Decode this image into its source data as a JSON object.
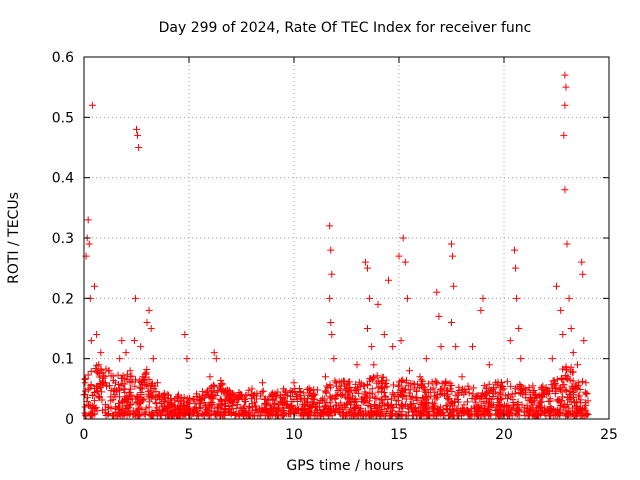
{
  "chart_data": {
    "type": "scatter",
    "title": "Day 299 of 2024, Rate Of TEC Index for receiver func",
    "xlabel": "GPS time / hours",
    "ylabel": "ROTI / TECUs",
    "xlim": [
      0,
      25
    ],
    "ylim": [
      0,
      0.6
    ],
    "x_ticks": [
      0,
      5,
      10,
      15,
      20,
      25
    ],
    "y_ticks": [
      0,
      0.1,
      0.2,
      0.3,
      0.4,
      0.5,
      0.6
    ],
    "x_tick_labels": [
      "0",
      "5",
      "10",
      "15",
      "20",
      "25"
    ],
    "y_tick_labels": [
      "0",
      "0.1",
      "0.2",
      "0.3",
      "0.4",
      "0.5",
      "0.6"
    ],
    "grid": true,
    "marker": "+",
    "color": "#ff0000",
    "series": [
      {
        "name": "ROTI",
        "points": [
          [
            0.05,
            0.06
          ],
          [
            0.1,
            0.27
          ],
          [
            0.15,
            0.3
          ],
          [
            0.2,
            0.33
          ],
          [
            0.25,
            0.29
          ],
          [
            0.3,
            0.2
          ],
          [
            0.35,
            0.13
          ],
          [
            0.4,
            0.52
          ],
          [
            0.5,
            0.22
          ],
          [
            0.6,
            0.14
          ],
          [
            0.7,
            0.09
          ],
          [
            0.8,
            0.11
          ],
          [
            1.0,
            0.07
          ],
          [
            1.2,
            0.08
          ],
          [
            1.5,
            0.06
          ],
          [
            1.7,
            0.1
          ],
          [
            1.8,
            0.13
          ],
          [
            2.0,
            0.11
          ],
          [
            2.2,
            0.08
          ],
          [
            2.4,
            0.13
          ],
          [
            2.45,
            0.2
          ],
          [
            2.5,
            0.48
          ],
          [
            2.55,
            0.47
          ],
          [
            2.6,
            0.45
          ],
          [
            2.7,
            0.12
          ],
          [
            2.8,
            0.07
          ],
          [
            3.0,
            0.16
          ],
          [
            3.1,
            0.18
          ],
          [
            3.2,
            0.15
          ],
          [
            3.3,
            0.1
          ],
          [
            3.5,
            0.06
          ],
          [
            3.6,
            0.04
          ],
          [
            4.0,
            0.03
          ],
          [
            4.5,
            0.04
          ],
          [
            4.8,
            0.14
          ],
          [
            4.9,
            0.1
          ],
          [
            5.0,
            0.03
          ],
          [
            5.5,
            0.03
          ],
          [
            6.0,
            0.07
          ],
          [
            6.2,
            0.11
          ],
          [
            6.3,
            0.1
          ],
          [
            6.5,
            0.05
          ],
          [
            7.0,
            0.03
          ],
          [
            7.5,
            0.04
          ],
          [
            8.0,
            0.05
          ],
          [
            8.5,
            0.06
          ],
          [
            9.0,
            0.04
          ],
          [
            9.5,
            0.05
          ],
          [
            10.0,
            0.06
          ],
          [
            10.5,
            0.03
          ],
          [
            11.0,
            0.04
          ],
          [
            11.5,
            0.07
          ],
          [
            11.7,
            0.32
          ],
          [
            11.75,
            0.28
          ],
          [
            11.8,
            0.24
          ],
          [
            11.7,
            0.2
          ],
          [
            11.75,
            0.16
          ],
          [
            11.8,
            0.14
          ],
          [
            11.9,
            0.1
          ],
          [
            12.0,
            0.06
          ],
          [
            12.5,
            0.05
          ],
          [
            13.0,
            0.09
          ],
          [
            13.4,
            0.26
          ],
          [
            13.5,
            0.25
          ],
          [
            13.6,
            0.2
          ],
          [
            13.5,
            0.15
          ],
          [
            13.7,
            0.12
          ],
          [
            13.8,
            0.09
          ],
          [
            14.0,
            0.19
          ],
          [
            14.3,
            0.14
          ],
          [
            14.5,
            0.23
          ],
          [
            14.7,
            0.12
          ],
          [
            15.0,
            0.27
          ],
          [
            15.2,
            0.3
          ],
          [
            15.3,
            0.26
          ],
          [
            15.4,
            0.2
          ],
          [
            15.1,
            0.13
          ],
          [
            15.5,
            0.08
          ],
          [
            16.0,
            0.07
          ],
          [
            16.3,
            0.1
          ],
          [
            16.8,
            0.21
          ],
          [
            16.9,
            0.17
          ],
          [
            17.0,
            0.12
          ],
          [
            17.5,
            0.29
          ],
          [
            17.55,
            0.27
          ],
          [
            17.6,
            0.22
          ],
          [
            17.5,
            0.16
          ],
          [
            17.7,
            0.12
          ],
          [
            18.0,
            0.07
          ],
          [
            18.5,
            0.12
          ],
          [
            18.9,
            0.18
          ],
          [
            19.0,
            0.2
          ],
          [
            19.3,
            0.09
          ],
          [
            19.6,
            0.06
          ],
          [
            20.0,
            0.05
          ],
          [
            20.3,
            0.13
          ],
          [
            20.5,
            0.28
          ],
          [
            20.55,
            0.25
          ],
          [
            20.6,
            0.2
          ],
          [
            20.7,
            0.15
          ],
          [
            20.8,
            0.1
          ],
          [
            21.0,
            0.05
          ],
          [
            21.5,
            0.04
          ],
          [
            22.0,
            0.05
          ],
          [
            22.3,
            0.1
          ],
          [
            22.5,
            0.22
          ],
          [
            22.7,
            0.18
          ],
          [
            22.8,
            0.14
          ],
          [
            22.9,
            0.57
          ],
          [
            22.95,
            0.55
          ],
          [
            22.9,
            0.52
          ],
          [
            22.85,
            0.47
          ],
          [
            22.9,
            0.38
          ],
          [
            23.0,
            0.29
          ],
          [
            23.1,
            0.2
          ],
          [
            23.2,
            0.15
          ],
          [
            23.3,
            0.11
          ],
          [
            23.5,
            0.09
          ],
          [
            23.7,
            0.26
          ],
          [
            23.75,
            0.24
          ],
          [
            23.8,
            0.13
          ],
          [
            23.9,
            0.06
          ],
          [
            24.0,
            0.03
          ]
        ],
        "dense_band": [
          [
            0,
            0.12
          ],
          [
            0.5,
            0.1
          ],
          [
            1,
            0.08
          ],
          [
            1.5,
            0.07
          ],
          [
            2,
            0.08
          ],
          [
            2.5,
            0.06
          ],
          [
            3,
            0.08
          ],
          [
            3.5,
            0.05
          ],
          [
            4,
            0.035
          ],
          [
            5,
            0.03
          ],
          [
            6,
            0.05
          ],
          [
            6.5,
            0.06
          ],
          [
            7,
            0.04
          ],
          [
            8,
            0.045
          ],
          [
            9,
            0.04
          ],
          [
            10,
            0.05
          ],
          [
            11,
            0.045
          ],
          [
            12,
            0.06
          ],
          [
            13,
            0.055
          ],
          [
            14,
            0.07
          ],
          [
            15,
            0.06
          ],
          [
            16,
            0.06
          ],
          [
            17,
            0.06
          ],
          [
            18,
            0.05
          ],
          [
            19,
            0.05
          ],
          [
            20,
            0.06
          ],
          [
            21,
            0.05
          ],
          [
            22,
            0.05
          ],
          [
            23,
            0.09
          ],
          [
            24,
            0.05
          ]
        ]
      }
    ]
  }
}
